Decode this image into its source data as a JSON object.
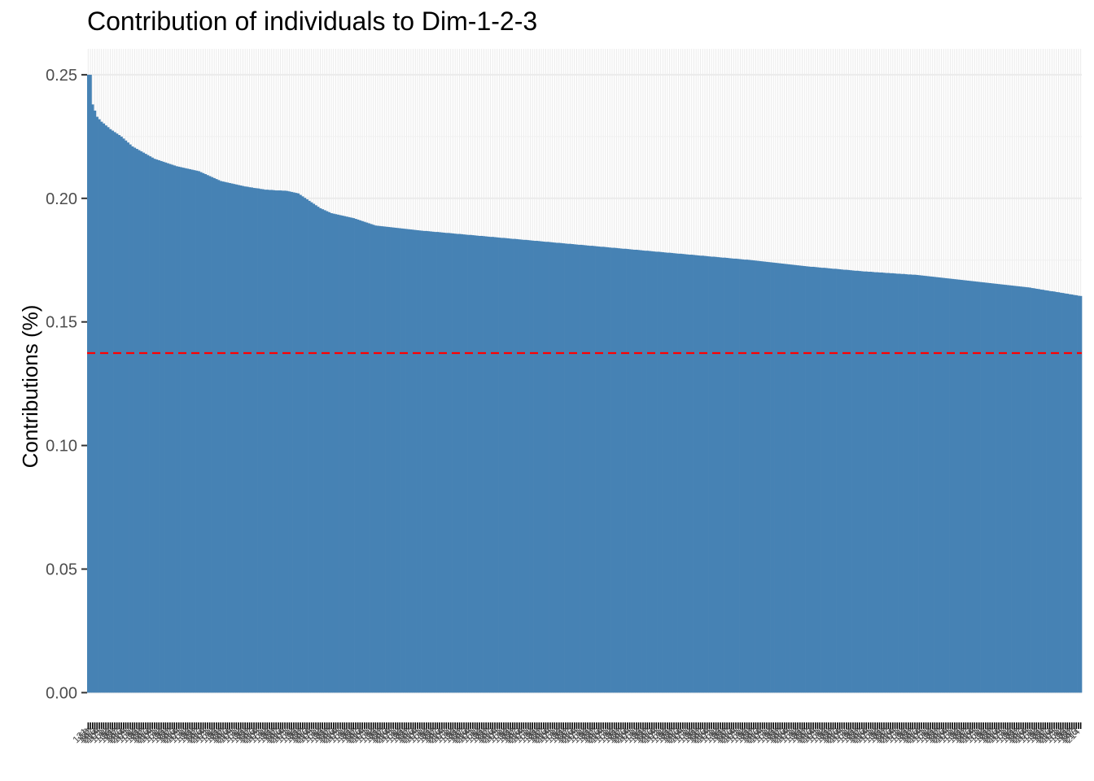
{
  "chart_data": {
    "type": "bar",
    "title": "Contribution of individuals to Dim-1-2-3",
    "xlabel": "",
    "ylabel": "Contributions (%)",
    "ylim": [
      -0.0002,
      0.2605
    ],
    "yticks": [
      "0.00",
      "0.05",
      "0.10",
      "0.15",
      "0.20",
      "0.25"
    ],
    "reference_line": {
      "value": 0.1374,
      "color": "#ff0000",
      "style": "dashed"
    },
    "bar_color": "#4682b4",
    "grid": true,
    "legend": "none",
    "n_categories": 450,
    "category_labels": [
      "131",
      "58",
      "177",
      "147",
      "216",
      "214",
      "109",
      "71",
      "161",
      "1",
      "133",
      "93"
    ],
    "profile": [
      [
        0,
        0.25
      ],
      [
        1,
        0.25
      ],
      [
        2,
        0.238
      ],
      [
        4,
        0.233
      ],
      [
        6,
        0.231
      ],
      [
        10,
        0.228
      ],
      [
        15,
        0.225
      ],
      [
        20,
        0.221
      ],
      [
        30,
        0.216
      ],
      [
        40,
        0.213
      ],
      [
        50,
        0.211
      ],
      [
        60,
        0.207
      ],
      [
        70,
        0.205
      ],
      [
        80,
        0.2035
      ],
      [
        90,
        0.203
      ],
      [
        95,
        0.202
      ],
      [
        100,
        0.199
      ],
      [
        105,
        0.196
      ],
      [
        110,
        0.194
      ],
      [
        120,
        0.192
      ],
      [
        130,
        0.189
      ],
      [
        140,
        0.188
      ],
      [
        150,
        0.187
      ],
      [
        175,
        0.185
      ],
      [
        200,
        0.183
      ],
      [
        225,
        0.181
      ],
      [
        250,
        0.179
      ],
      [
        275,
        0.177
      ],
      [
        300,
        0.175
      ],
      [
        325,
        0.1725
      ],
      [
        350,
        0.1705
      ],
      [
        375,
        0.169
      ],
      [
        400,
        0.1665
      ],
      [
        425,
        0.164
      ],
      [
        449,
        0.1605
      ]
    ]
  }
}
